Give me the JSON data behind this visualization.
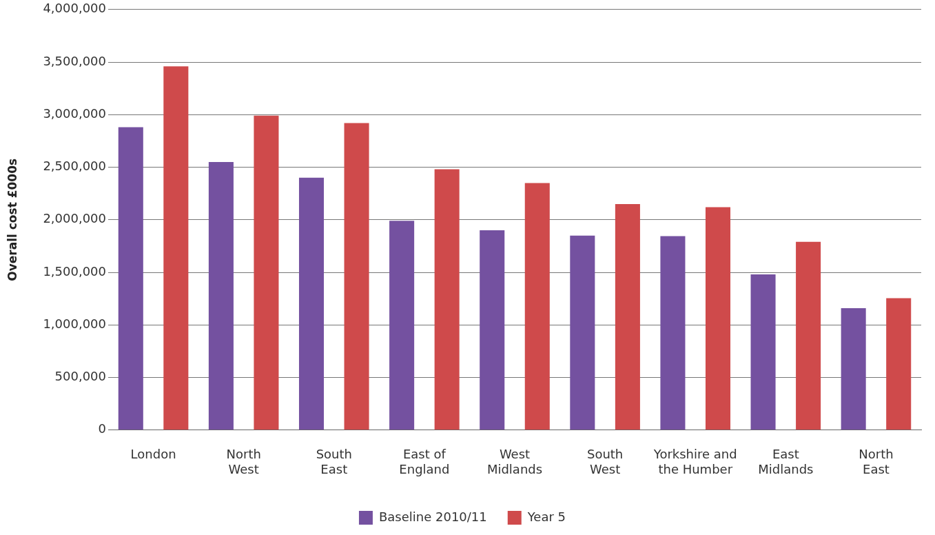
{
  "chart_data": {
    "type": "bar",
    "ylabel": "Overall cost £000s",
    "categories": [
      "London",
      "North West",
      "South East",
      "East of England",
      "West Midlands",
      "South West",
      "Yorkshire and the Humber",
      "East Midlands",
      "North East"
    ],
    "series": [
      {
        "name": "Baseline 2010/11",
        "color": "#7451a0",
        "values": [
          2880000,
          2550000,
          2400000,
          1990000,
          1900000,
          1850000,
          1845000,
          1480000,
          1160000
        ]
      },
      {
        "name": "Year 5",
        "color": "#cf4a4b",
        "values": [
          3460000,
          2990000,
          2920000,
          2480000,
          2350000,
          2150000,
          2120000,
          1790000,
          1255000
        ]
      }
    ],
    "ylim": [
      0,
      4000000
    ],
    "yticks": [
      0,
      {
        "value": 500000,
        "label": "500,000"
      },
      {
        "value": 1000000,
        "label": "1,000,000"
      },
      {
        "value": 1500000,
        "label": "1,500,000"
      },
      {
        "value": 2000000,
        "label": "2,000,000"
      },
      {
        "value": 2500000,
        "label": "2,500,000"
      },
      {
        "value": 3000000,
        "label": "3,000,000"
      },
      {
        "value": 3500000,
        "label": "3,500,000"
      },
      {
        "value": 4000000,
        "label": "4,000,000"
      }
    ],
    "grid": "y",
    "legend": "bottom"
  }
}
